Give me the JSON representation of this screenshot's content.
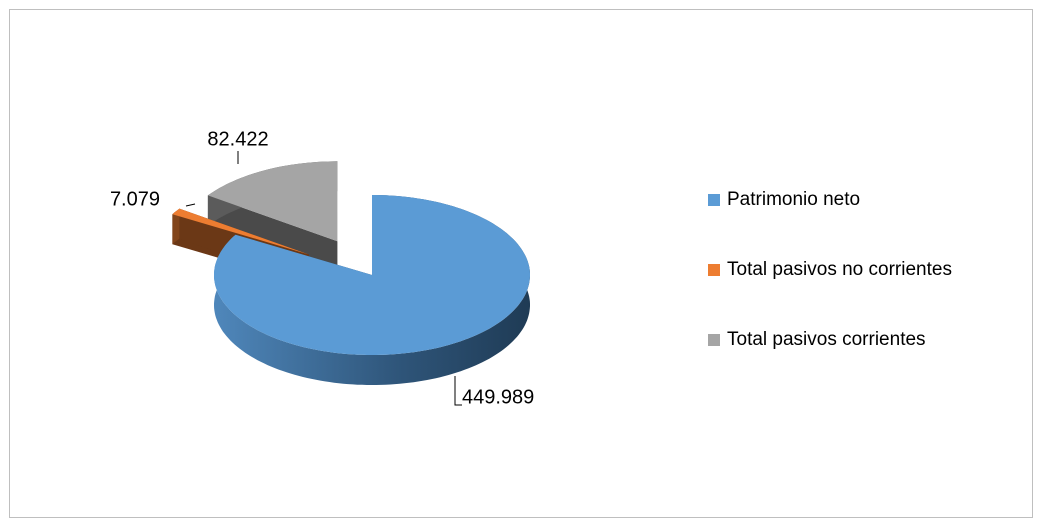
{
  "chart_data": {
    "type": "pie3d",
    "categories": [
      "Patrimonio neto",
      "Total pasivos no corrientes",
      "Total pasivos corrientes"
    ],
    "values": [
      449989,
      7079,
      82422
    ],
    "value_labels": [
      "449.989",
      "7.079",
      "82.422"
    ],
    "colors": [
      "#5b9bd5",
      "#ed7d31",
      "#a5a5a5"
    ],
    "legend": "right"
  }
}
